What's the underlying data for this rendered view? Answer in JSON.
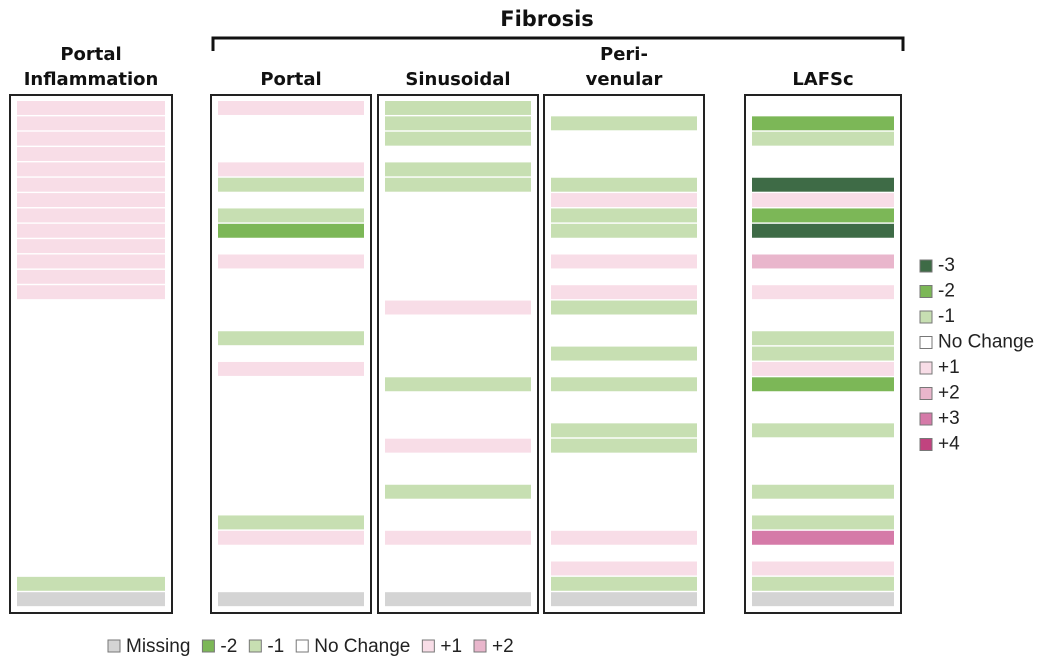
{
  "chart_data": {
    "type": "heatmap",
    "group_label": "Fibrosis",
    "columns": [
      {
        "name": [
          "Portal",
          "Inflammation"
        ],
        "values": [
          1,
          1,
          1,
          1,
          1,
          1,
          1,
          1,
          1,
          1,
          1,
          1,
          1,
          0,
          0,
          0,
          0,
          0,
          0,
          0,
          0,
          0,
          0,
          0,
          0,
          0,
          0,
          0,
          0,
          0,
          0,
          -1,
          null
        ]
      },
      {
        "name": [
          "Portal"
        ],
        "values": [
          1,
          0,
          0,
          0,
          1,
          -1,
          0,
          -1,
          -2,
          0,
          1,
          0,
          0,
          0,
          0,
          -1,
          0,
          1,
          0,
          0,
          0,
          0,
          0,
          0,
          0,
          0,
          0,
          -1,
          1,
          0,
          0,
          0,
          null
        ]
      },
      {
        "name": [
          "Sinusoidal"
        ],
        "values": [
          -1,
          -1,
          -1,
          0,
          -1,
          -1,
          0,
          0,
          0,
          0,
          0,
          0,
          0,
          1,
          0,
          0,
          0,
          0,
          -1,
          0,
          0,
          0,
          1,
          0,
          0,
          -1,
          0,
          0,
          1,
          0,
          0,
          0,
          null
        ]
      },
      {
        "name": [
          "Peri-",
          "venular"
        ],
        "values": [
          0,
          -1,
          0,
          0,
          0,
          -1,
          1,
          -1,
          -1,
          0,
          1,
          0,
          1,
          -1,
          0,
          0,
          -1,
          0,
          -1,
          0,
          0,
          -1,
          -1,
          0,
          0,
          0,
          0,
          0,
          1,
          0,
          1,
          -1,
          null
        ]
      },
      {
        "name": [
          "LAFSc"
        ],
        "values": [
          0,
          -2,
          -1,
          0,
          0,
          -3,
          1,
          -2,
          -3,
          0,
          2,
          0,
          1,
          0,
          0,
          -1,
          -1,
          1,
          -2,
          0,
          0,
          -1,
          0,
          0,
          0,
          -1,
          0,
          -1,
          3,
          0,
          1,
          -1,
          null
        ]
      }
    ],
    "legend": [
      {
        "value": -3,
        "label": "-3",
        "color": "#3e6b46"
      },
      {
        "value": -2,
        "label": "-2",
        "color": "#7cb757"
      },
      {
        "value": -1,
        "label": "-1",
        "color": "#c7dfb2"
      },
      {
        "value": 0,
        "label": "No Change",
        "color": "#ffffff"
      },
      {
        "value": 1,
        "label": "+1",
        "color": "#f8dde7"
      },
      {
        "value": 2,
        "label": "+2",
        "color": "#e9b6cc"
      },
      {
        "value": 3,
        "label": "+3",
        "color": "#d57aa8"
      },
      {
        "value": 4,
        "label": "+4",
        "color": "#c1437f"
      }
    ],
    "bottom_legend": [
      {
        "value": null,
        "label": "Missing",
        "color": "#d4d4d4"
      },
      {
        "value": -2,
        "label": "-2",
        "color": "#7cb757"
      },
      {
        "value": -1,
        "label": "-1",
        "color": "#c7dfb2"
      },
      {
        "value": 0,
        "label": "No Change",
        "color": "#ffffff"
      },
      {
        "value": 1,
        "label": "+1",
        "color": "#f8dde7"
      },
      {
        "value": 2,
        "label": "+2",
        "color": "#e9b6cc"
      }
    ]
  }
}
